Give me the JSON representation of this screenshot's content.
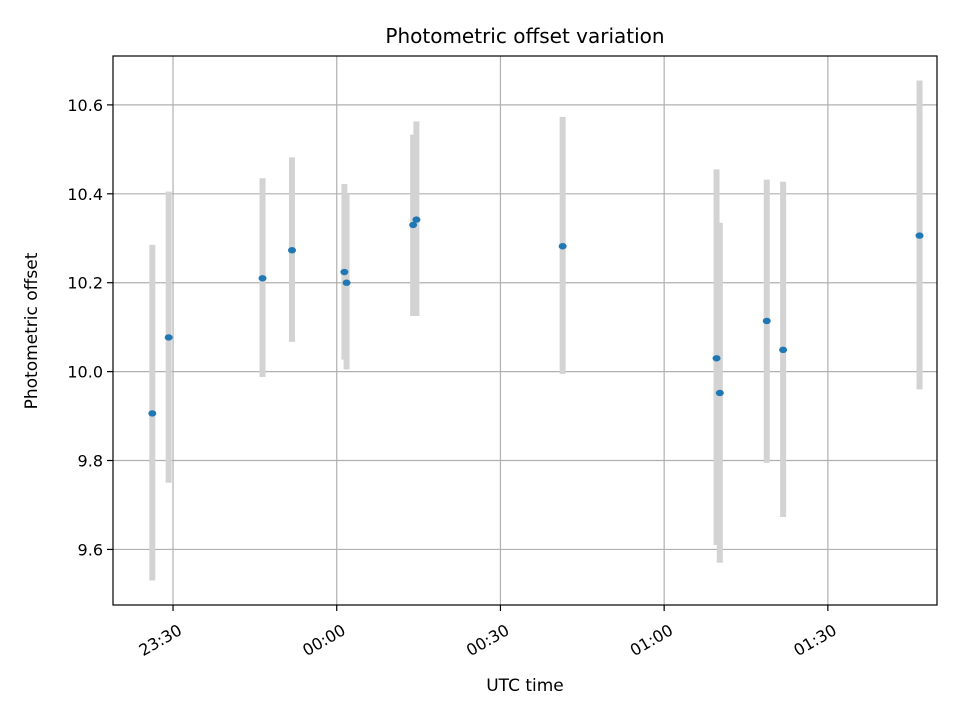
{
  "chart_data": {
    "type": "scatter",
    "title": "Photometric offset variation",
    "xlabel": "UTC time",
    "ylabel": "Photometric offset",
    "x_axis_kind": "time",
    "xlim": [
      "23:19",
      "01:50"
    ],
    "ylim": [
      9.475,
      10.71
    ],
    "x_ticks": [
      "23:30",
      "00:00",
      "00:30",
      "01:00",
      "01:30"
    ],
    "y_ticks": [
      9.6,
      9.8,
      10.0,
      10.2,
      10.4,
      10.6
    ],
    "grid": true,
    "legend": "none",
    "colors": {
      "point": "#1f77b4",
      "errorbar": "#d3d3d3",
      "grid": "#b0b0b0",
      "axes": "#000000"
    },
    "series": [
      {
        "points": [
          {
            "x": "23:26:12",
            "y": 9.906,
            "yerr_low": 9.53,
            "yerr_high": 10.285
          },
          {
            "x": "23:29:12",
            "y": 10.077,
            "yerr_low": 9.75,
            "yerr_high": 10.405
          },
          {
            "x": "23:46:24",
            "y": 10.21,
            "yerr_low": 9.988,
            "yerr_high": 10.435
          },
          {
            "x": "23:51:48",
            "y": 10.273,
            "yerr_low": 10.067,
            "yerr_high": 10.482
          },
          {
            "x": "00:01:24",
            "y": 10.224,
            "yerr_low": 10.027,
            "yerr_high": 10.422
          },
          {
            "x": "00:01:48",
            "y": 10.2,
            "yerr_low": 10.005,
            "yerr_high": 10.398
          },
          {
            "x": "00:14:00",
            "y": 10.33,
            "yerr_low": 10.125,
            "yerr_high": 10.533
          },
          {
            "x": "00:14:36",
            "y": 10.342,
            "yerr_low": 10.125,
            "yerr_high": 10.563
          },
          {
            "x": "00:41:24",
            "y": 10.282,
            "yerr_low": 9.995,
            "yerr_high": 10.573
          },
          {
            "x": "01:09:36",
            "y": 10.03,
            "yerr_low": 9.61,
            "yerr_high": 10.455
          },
          {
            "x": "01:10:12",
            "y": 9.952,
            "yerr_low": 9.57,
            "yerr_high": 10.335
          },
          {
            "x": "01:18:48",
            "y": 10.114,
            "yerr_low": 9.795,
            "yerr_high": 10.432
          },
          {
            "x": "01:21:48",
            "y": 10.049,
            "yerr_low": 9.673,
            "yerr_high": 10.427
          },
          {
            "x": "01:46:48",
            "y": 10.306,
            "yerr_low": 9.96,
            "yerr_high": 10.655
          }
        ]
      }
    ]
  }
}
